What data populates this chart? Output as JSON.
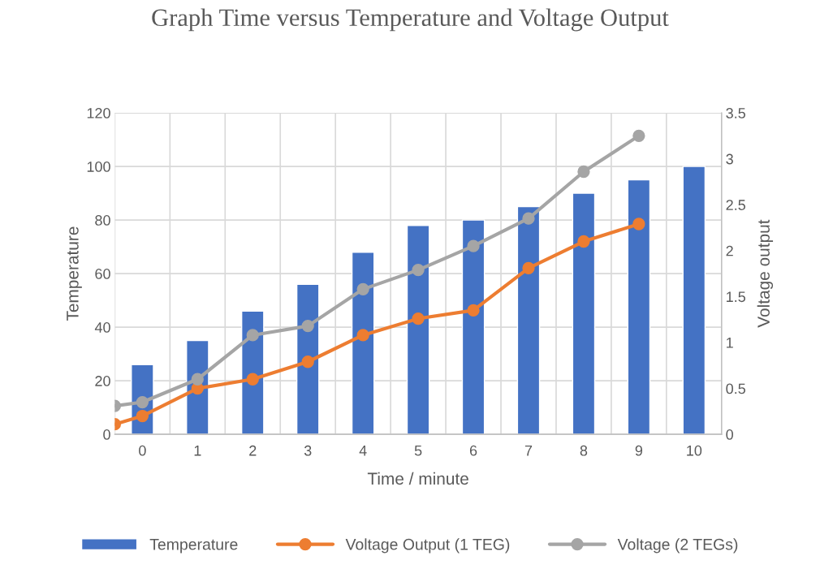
{
  "chart_data": {
    "type": "bar",
    "title": "Graph Time versus Temperature and Voltage Output",
    "xlabel": "Time / minute",
    "ylabel": "Temperature",
    "y2label": "Voltage output",
    "x": [
      0,
      1,
      2,
      3,
      4,
      5,
      6,
      7,
      8,
      9,
      10
    ],
    "xlim": [
      -0.5,
      10.5
    ],
    "xticks": [
      {
        "value": -0.5,
        "label": null
      },
      0,
      {
        "value": 0.5,
        "label": null
      },
      1,
      {
        "value": 1.5,
        "label": null
      },
      2,
      {
        "value": 2.5,
        "label": null
      },
      3,
      {
        "value": 3.5,
        "label": null
      },
      4,
      {
        "value": 4.5,
        "label": null
      },
      5,
      {
        "value": 5.5,
        "label": null
      },
      6,
      {
        "value": 6.5,
        "label": null
      },
      7,
      {
        "value": 7.5,
        "label": null
      },
      8,
      {
        "value": 8.5,
        "label": null
      },
      9,
      {
        "value": 9.5,
        "label": null
      },
      10,
      {
        "value": 10.5,
        "label": null
      }
    ],
    "ylim": [
      0,
      120
    ],
    "yticks": [
      0,
      20,
      40,
      60,
      80,
      100,
      120
    ],
    "y2lim": [
      0,
      3.5
    ],
    "y2ticks": [
      0,
      0.5,
      1,
      1.5,
      2,
      2.5,
      3,
      3.5
    ],
    "series": [
      {
        "name": "Temperature",
        "color": "#4472c4",
        "values": [
          26,
          35,
          46,
          56,
          68,
          78,
          80,
          85,
          90,
          95,
          100
        ]
      },
      {
        "name": "Voltage Output (1 TEG)",
        "type": "line",
        "axis": "y2",
        "color": "#ed7d31",
        "x": [
          -0.5,
          0,
          1,
          2,
          3,
          4,
          5,
          6,
          7,
          8,
          9
        ],
        "values": [
          0.11,
          0.2,
          0.5,
          0.6,
          0.79,
          1.08,
          1.26,
          1.35,
          1.81,
          2.1,
          2.29
        ]
      },
      {
        "name": "Voltage (2 TEGs)",
        "type": "line",
        "axis": "y2",
        "color": "#a5a5a5",
        "x": [
          -0.5,
          0,
          1,
          2,
          3,
          4,
          5,
          6,
          7,
          8,
          9
        ],
        "values": [
          0.31,
          0.35,
          0.6,
          1.08,
          1.18,
          1.58,
          1.79,
          2.05,
          2.35,
          2.86,
          3.25
        ]
      }
    ],
    "grid": true,
    "legend": "bottom",
    "marker": "circle",
    "line_style": "solid"
  }
}
